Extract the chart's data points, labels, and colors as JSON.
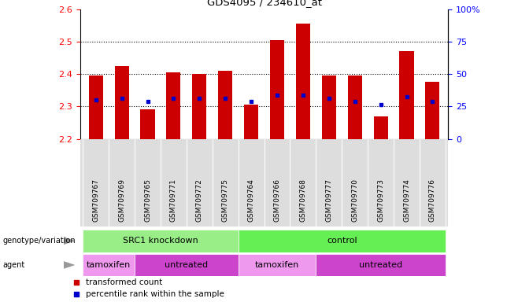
{
  "title": "GDS4095 / 234610_at",
  "samples": [
    "GSM709767",
    "GSM709769",
    "GSM709765",
    "GSM709771",
    "GSM709772",
    "GSM709775",
    "GSM709764",
    "GSM709766",
    "GSM709768",
    "GSM709777",
    "GSM709770",
    "GSM709773",
    "GSM709774",
    "GSM709776"
  ],
  "bar_tops": [
    2.395,
    2.425,
    2.29,
    2.405,
    2.4,
    2.41,
    2.305,
    2.505,
    2.555,
    2.395,
    2.395,
    2.27,
    2.47,
    2.375
  ],
  "bar_bottom": 2.2,
  "blue_marks": [
    2.32,
    2.325,
    2.315,
    2.325,
    2.325,
    2.325,
    2.315,
    2.335,
    2.335,
    2.325,
    2.315,
    2.305,
    2.33,
    2.315
  ],
  "ylim_left": [
    2.2,
    2.6
  ],
  "ylim_right": [
    0,
    100
  ],
  "yticks_left": [
    2.2,
    2.3,
    2.4,
    2.5,
    2.6
  ],
  "yticks_right": [
    0,
    25,
    50,
    75,
    100
  ],
  "ytick_labels_right": [
    "0",
    "25",
    "50",
    "75",
    "100%"
  ],
  "grid_lines": [
    2.3,
    2.4,
    2.5
  ],
  "bar_color": "#cc0000",
  "blue_color": "#0000cc",
  "genotype_groups": [
    {
      "label": "SRC1 knockdown",
      "start": 0,
      "end": 6,
      "color": "#99ee88"
    },
    {
      "label": "control",
      "start": 6,
      "end": 14,
      "color": "#66ee55"
    }
  ],
  "agent_groups": [
    {
      "label": "tamoxifen",
      "start": 0,
      "end": 2,
      "color": "#ee99ee"
    },
    {
      "label": "untreated",
      "start": 2,
      "end": 6,
      "color": "#cc44cc"
    },
    {
      "label": "tamoxifen",
      "start": 6,
      "end": 9,
      "color": "#ee99ee"
    },
    {
      "label": "untreated",
      "start": 9,
      "end": 14,
      "color": "#cc44cc"
    }
  ],
  "legend_items": [
    {
      "label": "transformed count",
      "color": "#cc0000"
    },
    {
      "label": "percentile rank within the sample",
      "color": "#0000cc"
    }
  ],
  "left_labels": [
    "genotype/variation",
    "agent"
  ],
  "bar_width": 0.55,
  "xtick_bg_color": "#dddddd",
  "left_label_arrow_color": "#999999"
}
